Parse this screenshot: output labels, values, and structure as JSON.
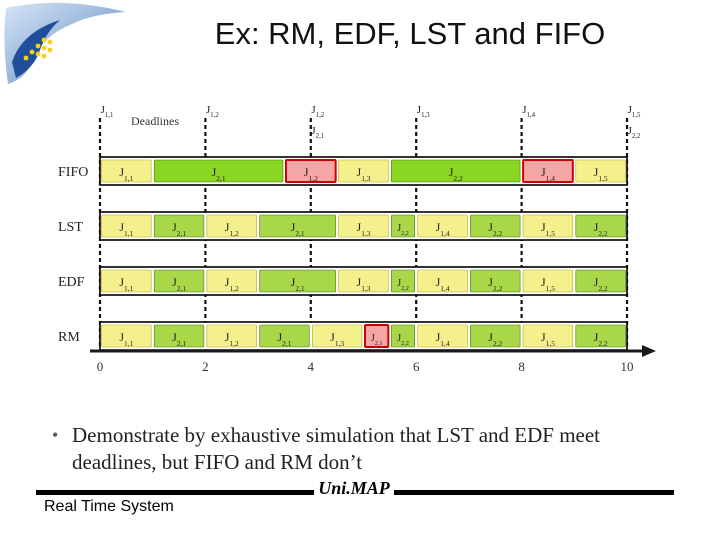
{
  "slide": {
    "title": "Ex: RM, EDF, LST and FIFO",
    "note_bullet": "•",
    "note": "Demonstrate by exhaustive simulation that LST and EDF meet deadlines, but FIFO and RM don’t"
  },
  "footer": {
    "left_text": "Real Time System",
    "brand": "Uni.MAP"
  },
  "colors": {
    "j1_lst": "#f4f08c",
    "j2_green": "#a8d848",
    "j2_bright": "#8ad422",
    "miss_red": "#f4a6a6",
    "miss_border": "#d00000",
    "row_border": "#000000",
    "arrow": "#1a1a1a"
  },
  "chart_data": {
    "type": "gantt",
    "deadlines_label": "Deadlines",
    "x_ticks": [
      0,
      2,
      4,
      6,
      8,
      10
    ],
    "xlim": [
      0,
      10
    ],
    "deadlines": [
      {
        "t": 0.0,
        "top": "J1,1",
        "bottom": ""
      },
      {
        "t": 2.0,
        "top": "J1,2",
        "bottom": ""
      },
      {
        "t": 4.0,
        "top": "J1,2",
        "bottom": "J2,1"
      },
      {
        "t": 6.0,
        "top": "J1,3",
        "bottom": ""
      },
      {
        "t": 8.0,
        "top": "J1,4",
        "bottom": ""
      },
      {
        "t": 10.0,
        "top": "J1,5",
        "bottom": "J2,2"
      }
    ],
    "rows": [
      {
        "name": "FIFO",
        "blocks": [
          {
            "label": "J1,1",
            "start": 0.0,
            "end": 1.0,
            "kind": "j1"
          },
          {
            "label": "J2,1",
            "start": 1.0,
            "end": 3.5,
            "kind": "j2"
          },
          {
            "label": "J1,2",
            "start": 3.5,
            "end": 4.5,
            "kind": "miss"
          },
          {
            "label": "J1,3",
            "start": 4.5,
            "end": 5.5,
            "kind": "j1"
          },
          {
            "label": "J2,2",
            "start": 5.5,
            "end": 8.0,
            "kind": "j2"
          },
          {
            "label": "J1,4",
            "start": 8.0,
            "end": 9.0,
            "kind": "miss"
          },
          {
            "label": "J1,5",
            "start": 9.0,
            "end": 10.0,
            "kind": "j1"
          }
        ]
      },
      {
        "name": "LST",
        "blocks": [
          {
            "label": "J1,1",
            "start": 0.0,
            "end": 1.0,
            "kind": "j1"
          },
          {
            "label": "J2,1",
            "start": 1.0,
            "end": 2.0,
            "kind": "j2"
          },
          {
            "label": "J1,2",
            "start": 2.0,
            "end": 3.0,
            "kind": "j1"
          },
          {
            "label": "J2,1",
            "start": 3.0,
            "end": 4.5,
            "kind": "j2"
          },
          {
            "label": "J1,3",
            "start": 4.5,
            "end": 5.5,
            "kind": "j1"
          },
          {
            "label": "J2,2",
            "start": 5.5,
            "end": 6.0,
            "kind": "j2"
          },
          {
            "label": "J1,4",
            "start": 6.0,
            "end": 7.0,
            "kind": "j1"
          },
          {
            "label": "J2,2",
            "start": 7.0,
            "end": 8.0,
            "kind": "j2"
          },
          {
            "label": "J1,5",
            "start": 8.0,
            "end": 9.0,
            "kind": "j1"
          },
          {
            "label": "J2,2",
            "start": 9.0,
            "end": 10.0,
            "kind": "j2"
          }
        ]
      },
      {
        "name": "EDF",
        "blocks": [
          {
            "label": "J1,1",
            "start": 0.0,
            "end": 1.0,
            "kind": "j1"
          },
          {
            "label": "J2,1",
            "start": 1.0,
            "end": 2.0,
            "kind": "j2"
          },
          {
            "label": "J1,2",
            "start": 2.0,
            "end": 3.0,
            "kind": "j1"
          },
          {
            "label": "J2,1",
            "start": 3.0,
            "end": 4.5,
            "kind": "j2"
          },
          {
            "label": "J1,3",
            "start": 4.5,
            "end": 5.5,
            "kind": "j1"
          },
          {
            "label": "J2,2",
            "start": 5.5,
            "end": 6.0,
            "kind": "j2"
          },
          {
            "label": "J1,4",
            "start": 6.0,
            "end": 7.0,
            "kind": "j1"
          },
          {
            "label": "J2,2",
            "start": 7.0,
            "end": 8.0,
            "kind": "j2"
          },
          {
            "label": "J1,5",
            "start": 8.0,
            "end": 9.0,
            "kind": "j1"
          },
          {
            "label": "J2,2",
            "start": 9.0,
            "end": 10.0,
            "kind": "j2"
          }
        ]
      },
      {
        "name": "RM",
        "blocks": [
          {
            "label": "J1,1",
            "start": 0.0,
            "end": 1.0,
            "kind": "j1"
          },
          {
            "label": "J2,1",
            "start": 1.0,
            "end": 2.0,
            "kind": "j2"
          },
          {
            "label": "J1,2",
            "start": 2.0,
            "end": 3.0,
            "kind": "j1"
          },
          {
            "label": "J2,1",
            "start": 3.0,
            "end": 4.0,
            "kind": "j2"
          },
          {
            "label": "J1,3",
            "start": 4.0,
            "end": 5.0,
            "kind": "j1"
          },
          {
            "label": "J2,1",
            "start": 5.0,
            "end": 5.5,
            "kind": "miss"
          },
          {
            "label": "J2,2",
            "start": 5.5,
            "end": 6.0,
            "kind": "j2"
          },
          {
            "label": "J1,4",
            "start": 6.0,
            "end": 7.0,
            "kind": "j1"
          },
          {
            "label": "J2,2",
            "start": 7.0,
            "end": 8.0,
            "kind": "j2"
          },
          {
            "label": "J1,5",
            "start": 8.0,
            "end": 9.0,
            "kind": "j1"
          },
          {
            "label": "J2,2",
            "start": 9.0,
            "end": 10.0,
            "kind": "j2"
          }
        ]
      }
    ]
  }
}
